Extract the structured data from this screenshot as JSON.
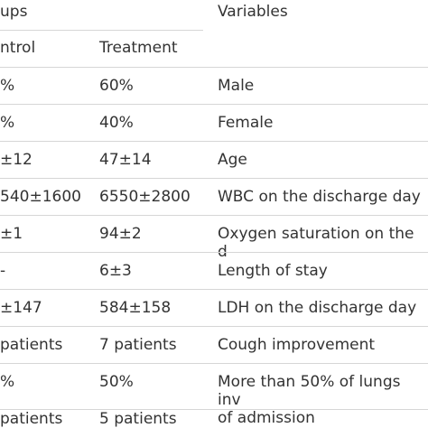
{
  "header": {
    "groups": "ups",
    "variables": "Variables"
  },
  "subheader": {
    "control": "ntrol",
    "treatment": "Treatment"
  },
  "rows": [
    [
      "%",
      "60%",
      "Male"
    ],
    [
      "%",
      "40%",
      "Female"
    ],
    [
      "±12",
      "47±14",
      "Age"
    ],
    [
      "540±1600",
      "6550±2800",
      "WBC on the discharge day"
    ],
    [
      "±1",
      "94±2",
      "Oxygen saturation on the d"
    ],
    [
      "-",
      "6±3",
      "Length of stay"
    ],
    [
      "±147",
      "584±158",
      "LDH on the discharge day"
    ],
    [
      "patients",
      "7 patients",
      "Cough improvement"
    ],
    [
      "%",
      "50%",
      "More than 50% of lungs inv\nof admission"
    ],
    [
      "patients",
      "5 patients"
    ]
  ]
}
